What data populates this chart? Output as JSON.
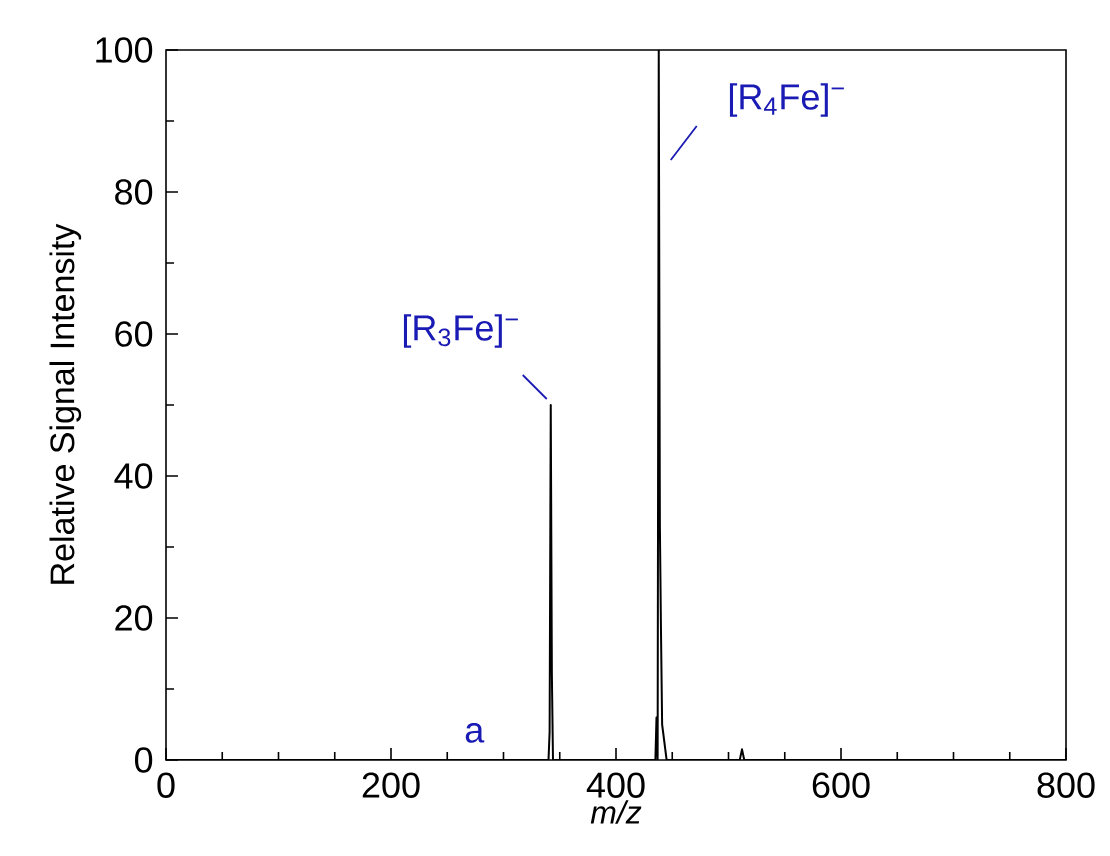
{
  "chart_data": {
    "type": "line",
    "xlabel": "m/z",
    "ylabel": "Relative Signal Intensity",
    "series": [
      {
        "color": "#000000",
        "x": [
          0,
          335,
          340,
          341,
          342,
          343,
          344,
          350,
          430,
          435,
          436,
          437,
          438,
          439,
          440,
          441,
          445,
          510,
          512,
          514,
          800
        ],
        "values": [
          0,
          0,
          0,
          4,
          50,
          12,
          0,
          0,
          0,
          0,
          6,
          0,
          100,
          33,
          18,
          5,
          0,
          0,
          1.5,
          0,
          0
        ]
      }
    ],
    "xlim": [
      0,
      800
    ],
    "xticks": [
      0,
      200,
      400,
      600,
      800
    ],
    "ylim": [
      0,
      100
    ],
    "yticks": [
      0,
      20,
      40,
      60,
      80,
      100
    ],
    "annotations": [
      {
        "text": "[R$_{3}$Fe]$^{−}$",
        "x": 342,
        "y": 50
      },
      {
        "text": "[R$_{4}$Fe]$^{−}$",
        "x": 438,
        "y": 100
      },
      {
        "text": "a",
        "x": 274,
        "y": 1
      }
    ],
    "grid": false,
    "marker": "none",
    "line_style": "solid"
  }
}
